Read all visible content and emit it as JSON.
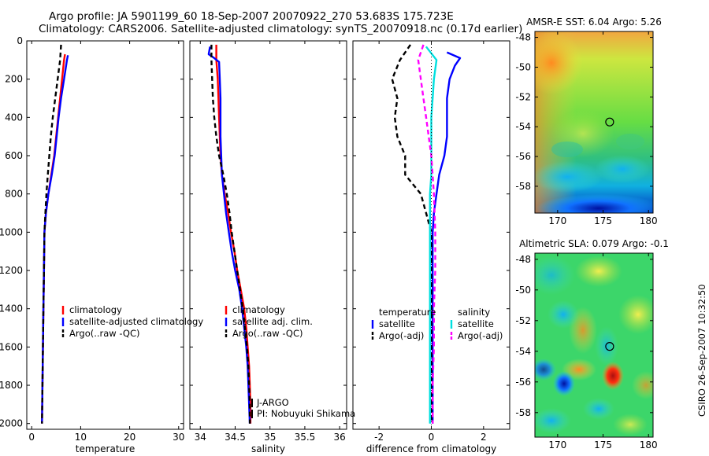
{
  "title": {
    "line1": "Argo profile: JA 5901199_60 18-Sep-2007 20070922_270 53.683S 175.723E",
    "line2": "Climatology: CARS2006. Satellite-adjusted climatology: synTS_20070918.nc (0.17d earlier)"
  },
  "stamp": "CSIRO 26-Sep-2007 10:32:50",
  "colors": {
    "climatology": "#ff0000",
    "satellite": "#0000ff",
    "argo": "#000000",
    "sal_satellite": "#00e0e0",
    "sal_argo": "#ff00ff"
  },
  "chart_data": [
    {
      "id": "temperature",
      "type": "line",
      "xlabel": "temperature",
      "ylabel": "",
      "xlim": [
        -1,
        31
      ],
      "ylim": [
        2030,
        0
      ],
      "xticks": [
        0,
        10,
        20,
        30
      ],
      "yticks": [
        0,
        200,
        400,
        600,
        800,
        1000,
        1200,
        1400,
        1600,
        1800,
        2000
      ],
      "legend": {
        "placement": "lower-right",
        "entries": [
          "climatology",
          "satellite-adjusted climatology",
          "Argo(..raw -QC)"
        ]
      },
      "series": [
        {
          "name": "climatology",
          "color": "#ff0000",
          "dash": "solid",
          "points": [
            [
              6.8,
              70
            ],
            [
              6.6,
              100
            ],
            [
              6.2,
              200
            ],
            [
              5.8,
              300
            ],
            [
              5.4,
              400
            ],
            [
              5.0,
              500
            ],
            [
              4.6,
              600
            ],
            [
              4.0,
              700
            ],
            [
              3.4,
              800
            ],
            [
              2.9,
              900
            ],
            [
              2.6,
              1000
            ],
            [
              2.5,
              1200
            ],
            [
              2.4,
              1400
            ],
            [
              2.3,
              1600
            ],
            [
              2.2,
              1800
            ],
            [
              2.1,
              2000
            ]
          ]
        },
        {
          "name": "satellite-adjusted climatology",
          "color": "#0000ff",
          "dash": "solid",
          "points": [
            [
              7.4,
              75
            ],
            [
              7.2,
              100
            ],
            [
              6.6,
              200
            ],
            [
              6.0,
              300
            ],
            [
              5.5,
              400
            ],
            [
              5.1,
              500
            ],
            [
              4.7,
              600
            ],
            [
              4.1,
              700
            ],
            [
              3.4,
              800
            ],
            [
              2.9,
              900
            ],
            [
              2.6,
              1000
            ],
            [
              2.5,
              1200
            ],
            [
              2.4,
              1400
            ],
            [
              2.3,
              1600
            ],
            [
              2.2,
              1800
            ],
            [
              2.1,
              2000
            ]
          ]
        },
        {
          "name": "Argo(..raw -QC)",
          "color": "#000000",
          "dash": "dashed",
          "points": [
            [
              6.0,
              20
            ],
            [
              5.8,
              100
            ],
            [
              5.3,
              200
            ],
            [
              4.8,
              300
            ],
            [
              4.3,
              400
            ],
            [
              3.9,
              500
            ],
            [
              3.6,
              600
            ],
            [
              3.3,
              700
            ],
            [
              3.0,
              800
            ],
            [
              2.8,
              900
            ],
            [
              2.6,
              1000
            ],
            [
              2.5,
              1200
            ],
            [
              2.4,
              1400
            ],
            [
              2.3,
              1600
            ],
            [
              2.2,
              1800
            ],
            [
              2.1,
              2000
            ]
          ]
        }
      ]
    },
    {
      "id": "salinity",
      "type": "line",
      "xlabel": "salinity",
      "ylabel": "",
      "xlim": [
        33.85,
        36.1
      ],
      "ylim": [
        2030,
        0
      ],
      "xticks": [
        34,
        34.5,
        35,
        35.5,
        36
      ],
      "yticks": [
        0,
        200,
        400,
        600,
        800,
        1000,
        1200,
        1400,
        1600,
        1800,
        2000
      ],
      "legend": {
        "placement": "lower-right",
        "entries": [
          "climatology",
          "satellite adj. clim.",
          "Argo(..raw -QC)"
        ]
      },
      "annotations": [
        "J-ARGO",
        "PI: Nobuyuki Shikama"
      ],
      "series": [
        {
          "name": "climatology",
          "color": "#ff0000",
          "dash": "solid",
          "points": [
            [
              34.23,
              20
            ],
            [
              34.23,
              100
            ],
            [
              34.25,
              200
            ],
            [
              34.26,
              300
            ],
            [
              34.27,
              400
            ],
            [
              34.28,
              500
            ],
            [
              34.29,
              600
            ],
            [
              34.31,
              700
            ],
            [
              34.35,
              800
            ],
            [
              34.4,
              900
            ],
            [
              34.44,
              1000
            ],
            [
              34.49,
              1100
            ],
            [
              34.53,
              1200
            ],
            [
              34.58,
              1300
            ],
            [
              34.63,
              1400
            ],
            [
              34.66,
              1500
            ],
            [
              34.68,
              1600
            ],
            [
              34.7,
              1700
            ],
            [
              34.71,
              1800
            ],
            [
              34.72,
              1900
            ],
            [
              34.72,
              2000
            ]
          ]
        },
        {
          "name": "satellite adj. clim.",
          "color": "#0000ff",
          "dash": "solid",
          "points": [
            [
              34.14,
              30
            ],
            [
              34.12,
              70
            ],
            [
              34.2,
              90
            ],
            [
              34.27,
              110
            ],
            [
              34.28,
              200
            ],
            [
              34.29,
              300
            ],
            [
              34.29,
              400
            ],
            [
              34.29,
              500
            ],
            [
              34.3,
              600
            ],
            [
              34.31,
              700
            ],
            [
              34.34,
              800
            ],
            [
              34.37,
              900
            ],
            [
              34.41,
              1000
            ],
            [
              34.45,
              1100
            ],
            [
              34.5,
              1200
            ],
            [
              34.56,
              1300
            ],
            [
              34.6,
              1400
            ],
            [
              34.63,
              1500
            ],
            [
              34.66,
              1600
            ],
            [
              34.68,
              1700
            ],
            [
              34.69,
              1800
            ],
            [
              34.7,
              1900
            ],
            [
              34.71,
              2000
            ]
          ]
        },
        {
          "name": "Argo(..raw -QC)",
          "color": "#000000",
          "dash": "dashed",
          "points": [
            [
              34.16,
              20
            ],
            [
              34.16,
              100
            ],
            [
              34.17,
              200
            ],
            [
              34.18,
              300
            ],
            [
              34.2,
              400
            ],
            [
              34.23,
              500
            ],
            [
              34.27,
              600
            ],
            [
              34.33,
              700
            ],
            [
              34.38,
              800
            ],
            [
              34.42,
              900
            ],
            [
              34.45,
              1000
            ],
            [
              34.49,
              1100
            ],
            [
              34.53,
              1200
            ],
            [
              34.57,
              1300
            ],
            [
              34.61,
              1400
            ],
            [
              34.64,
              1500
            ],
            [
              34.67,
              1600
            ],
            [
              34.69,
              1700
            ],
            [
              34.7,
              1800
            ],
            [
              34.71,
              1900
            ],
            [
              34.71,
              2000
            ]
          ]
        }
      ]
    },
    {
      "id": "difference",
      "type": "line",
      "xlabel": "difference from climatology",
      "ylabel": "",
      "xlim": [
        -3.0,
        3.0
      ],
      "ylim": [
        2030,
        0
      ],
      "xticks": [
        -2,
        0,
        2
      ],
      "yticks": [
        0,
        200,
        400,
        600,
        800,
        1000,
        1200,
        1400,
        1600,
        1800,
        2000
      ],
      "legend": {
        "placement": "lower-center",
        "groups": [
          {
            "header": "temperature",
            "entries": [
              "satellite",
              "Argo(-adj)"
            ]
          },
          {
            "header": "salinity",
            "entries": [
              "satellite",
              "Argo(-adj)"
            ]
          }
        ]
      },
      "series": [
        {
          "name": "temperature satellite",
          "color": "#0000ff",
          "dash": "solid",
          "points": [
            [
              0.6,
              60
            ],
            [
              1.1,
              90
            ],
            [
              0.9,
              130
            ],
            [
              0.7,
              200
            ],
            [
              0.6,
              300
            ],
            [
              0.6,
              400
            ],
            [
              0.6,
              500
            ],
            [
              0.5,
              600
            ],
            [
              0.3,
              700
            ],
            [
              0.2,
              800
            ],
            [
              0.1,
              900
            ],
            [
              0.05,
              1000
            ],
            [
              0.05,
              1200
            ],
            [
              0.05,
              1400
            ],
            [
              0.05,
              1600
            ],
            [
              0.05,
              1800
            ],
            [
              0.05,
              2000
            ]
          ]
        },
        {
          "name": "temperature Argo(-adj)",
          "color": "#000000",
          "dash": "dashed",
          "points": [
            [
              -0.8,
              20
            ],
            [
              -1.2,
              100
            ],
            [
              -1.5,
              200
            ],
            [
              -1.3,
              300
            ],
            [
              -1.4,
              400
            ],
            [
              -1.3,
              500
            ],
            [
              -1.0,
              600
            ],
            [
              -1.0,
              700
            ],
            [
              -0.4,
              800
            ],
            [
              -0.2,
              900
            ],
            [
              0.0,
              1000
            ],
            [
              0.0,
              1200
            ],
            [
              0.0,
              1400
            ],
            [
              0.0,
              1600
            ],
            [
              0.0,
              1800
            ],
            [
              0.0,
              2000
            ]
          ]
        },
        {
          "name": "salinity satellite",
          "color": "#00e0e0",
          "dash": "solid",
          "points": [
            [
              -0.2,
              30
            ],
            [
              0.2,
              100
            ],
            [
              0.1,
              200
            ],
            [
              0.05,
              300
            ],
            [
              0.0,
              400
            ],
            [
              0.0,
              500
            ],
            [
              0.0,
              600
            ],
            [
              0.0,
              700
            ],
            [
              -0.05,
              800
            ],
            [
              -0.05,
              1000
            ],
            [
              -0.05,
              1200
            ],
            [
              -0.05,
              1400
            ],
            [
              -0.05,
              1600
            ],
            [
              -0.05,
              1800
            ],
            [
              -0.05,
              2000
            ]
          ]
        },
        {
          "name": "salinity Argo(-adj)",
          "color": "#ff00ff",
          "dash": "dashed",
          "points": [
            [
              -0.3,
              20
            ],
            [
              -0.5,
              100
            ],
            [
              -0.4,
              200
            ],
            [
              -0.3,
              300
            ],
            [
              -0.2,
              400
            ],
            [
              -0.1,
              500
            ],
            [
              0.0,
              600
            ],
            [
              0.1,
              800
            ],
            [
              0.15,
              1000
            ],
            [
              0.15,
              1200
            ],
            [
              0.1,
              1400
            ],
            [
              0.1,
              1600
            ],
            [
              0.05,
              1800
            ],
            [
              0.05,
              2000
            ]
          ]
        }
      ]
    },
    {
      "id": "amsr",
      "type": "heatmap",
      "title": "AMSR-E SST: 6.04 Argo: 5.26",
      "xlim": [
        167.5,
        180.5
      ],
      "ylim": [
        -59.8,
        -47.6
      ],
      "xticks": [
        170,
        175,
        180
      ],
      "yticks": [
        -48,
        -50,
        -52,
        -54,
        -56,
        -58
      ],
      "marker": {
        "lon": 175.723,
        "lat": -53.683
      },
      "colormap": "jet"
    },
    {
      "id": "sla",
      "type": "heatmap",
      "title": "Altimetric SLA: 0.079 Argo: -0.1",
      "xlim": [
        167.5,
        180.5
      ],
      "ylim": [
        -59.6,
        -47.6
      ],
      "xticks": [
        170,
        175,
        180
      ],
      "yticks": [
        -48,
        -50,
        -52,
        -54,
        -56,
        -58
      ],
      "marker": {
        "lon": 175.723,
        "lat": -53.683
      },
      "colormap": "jet"
    }
  ]
}
